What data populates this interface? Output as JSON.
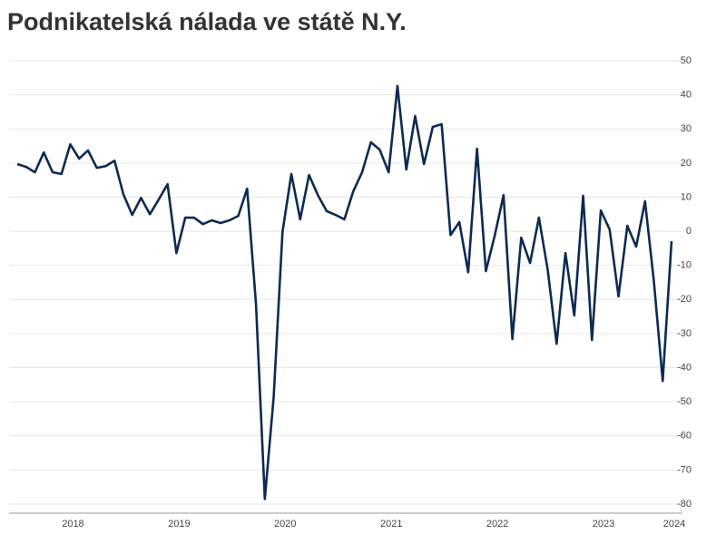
{
  "chart_data": {
    "type": "line",
    "title": "Podnikatelská nálada ve státě N.Y.",
    "categories": [
      null,
      null,
      null,
      null,
      null,
      null,
      "2018",
      null,
      null,
      null,
      null,
      null,
      null,
      null,
      null,
      null,
      null,
      null,
      "2019",
      null,
      null,
      null,
      null,
      null,
      null,
      null,
      null,
      null,
      null,
      null,
      "2020",
      null,
      null,
      null,
      null,
      null,
      null,
      null,
      null,
      null,
      null,
      null,
      "2021",
      null,
      null,
      null,
      null,
      null,
      null,
      null,
      null,
      null,
      null,
      null,
      "2022",
      null,
      null,
      null,
      null,
      null,
      null,
      null,
      null,
      null,
      null,
      null,
      "2023",
      null,
      null,
      null,
      null,
      null,
      null,
      null,
      "2024"
    ],
    "series": [
      {
        "color": "#0d2a52",
        "values": [
          19.7,
          18.9,
          17.3,
          23.1,
          17.3,
          16.8,
          25.5,
          21.3,
          23.7,
          18.6,
          19.1,
          20.7,
          10.9,
          4.8,
          9.8,
          5,
          9.3,
          13.8,
          -6.4,
          4,
          4,
          2.1,
          3.2,
          2.4,
          3.2,
          4.5,
          12.5,
          -21.3,
          -78.5,
          -48.7,
          -0.2,
          16.8,
          3.5,
          16.5,
          10.6,
          5.9,
          4.8,
          3.5,
          11.7,
          17.3,
          26.1,
          23.9,
          17.3,
          42.6,
          18.1,
          33.8,
          19.7,
          30.6,
          31.4,
          -1.1,
          2.7,
          -12,
          24.2,
          -11.7,
          -1.3,
          10.6,
          -31.6,
          -1.9,
          -9.3,
          4,
          -11.4,
          -33,
          -6.4,
          -24.7,
          10.4,
          -31.9,
          6.1,
          0.5,
          -19.1,
          1.6,
          -4.5,
          8.8,
          -14.6,
          -43.9,
          -2.9
        ]
      }
    ],
    "ylim": [
      -80,
      50
    ],
    "yticks": [
      -80,
      -70,
      -60,
      -50,
      -40,
      -30,
      -20,
      -10,
      0,
      10,
      20,
      30,
      40,
      50
    ],
    "grid": true
  }
}
